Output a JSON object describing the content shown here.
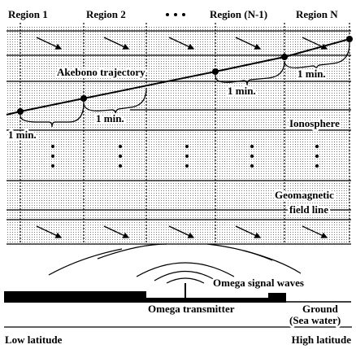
{
  "regions": [
    "Region 1",
    "Region 2",
    "Region (N-1)",
    "Region N"
  ],
  "labels": {
    "trajectory": "Akebono trajectory",
    "one_minute": [
      "1 min.",
      "1 min.",
      "1 min.",
      "1 min."
    ],
    "ionosphere": "Ionosphere",
    "field_line": [
      "Geomagnetic",
      "field line"
    ],
    "waves": "Omega signal waves",
    "transmitter": "Omega transmitter",
    "ground": [
      "Ground",
      "(Sea water)"
    ]
  },
  "latitude": {
    "low": "Low latitude",
    "high": "High latitude"
  }
}
